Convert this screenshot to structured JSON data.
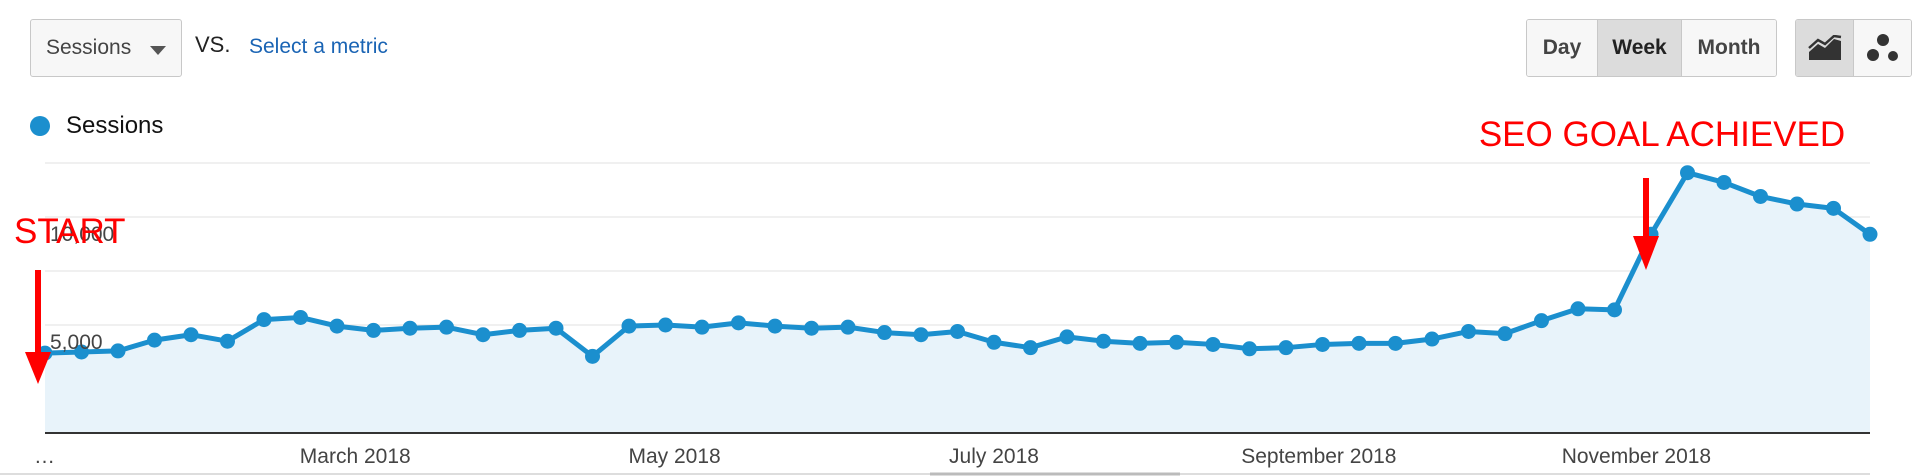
{
  "toolbar": {
    "metric_select": "Sessions",
    "vs_label": "VS.",
    "select_metric_link": "Select a metric",
    "period_buttons": [
      "Day",
      "Week",
      "Month"
    ],
    "active_period": "Week",
    "view_buttons": [
      "line-chart-icon",
      "motion-chart-icon"
    ],
    "active_view": "line-chart-icon"
  },
  "legend": {
    "label": "Sessions",
    "color": "#1b8fce"
  },
  "colors": {
    "line": "#1b8fce",
    "fill": "#e8f3fa",
    "grid": "#e6e6e6",
    "annotation": "#ff0000"
  },
  "chart_data": {
    "type": "area",
    "title": "",
    "xlabel": "",
    "ylabel": "",
    "series": [
      {
        "name": "Sessions",
        "values": [
          3700,
          3750,
          3800,
          4300,
          4550,
          4250,
          5250,
          5350,
          4950,
          4750,
          4850,
          4900,
          4550,
          4750,
          4850,
          3550,
          4950,
          5000,
          4900,
          5100,
          4950,
          4850,
          4900,
          4650,
          4550,
          4700,
          4200,
          3950,
          4450,
          4250,
          4150,
          4200,
          4100,
          3900,
          3950,
          4100,
          4150,
          4150,
          4350,
          4700,
          4600,
          5200,
          5750,
          5700,
          9200,
          12050,
          11600,
          10950,
          10600,
          10400,
          9200
        ]
      }
    ],
    "y_ticks": [
      {
        "value": 5000,
        "label": "5,000"
      },
      {
        "value": 10000,
        "label": "10,000"
      }
    ],
    "y_gridlines": [
      2500,
      5000,
      7500,
      10000,
      12500
    ],
    "ylim": [
      0,
      12500
    ],
    "x_ticks": [
      {
        "index": 0,
        "label": "…"
      },
      {
        "index": 8.5,
        "label": "March 2018"
      },
      {
        "index": 17.25,
        "label": "May 2018"
      },
      {
        "index": 26,
        "label": "July 2018"
      },
      {
        "index": 34.9,
        "label": "September 2018"
      },
      {
        "index": 43.6,
        "label": "November 2018"
      }
    ],
    "annotations": [
      {
        "label": "START",
        "point_index": 0
      },
      {
        "label": "SEO GOAL ACHIEVED",
        "point_index": 44
      }
    ],
    "legend_position": "top-left",
    "grid": true
  }
}
